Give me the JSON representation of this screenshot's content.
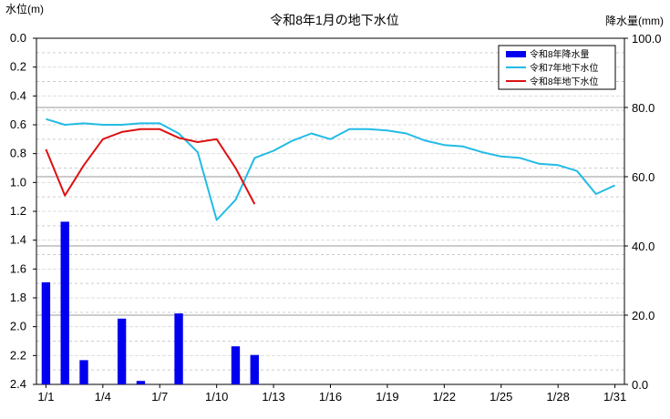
{
  "chart_data": {
    "type": "bar+line",
    "title": "令和8年1月の地下水位",
    "left_axis": {
      "label": "水位(m)",
      "ticks": [
        "0.0",
        "0.2",
        "0.4",
        "0.6",
        "0.8",
        "1.0",
        "1.2",
        "1.4",
        "1.6",
        "1.8",
        "2.0",
        "2.2",
        "2.4"
      ],
      "range": [
        0.0,
        2.4
      ],
      "inverted": true
    },
    "right_axis": {
      "label": "降水量(mm)",
      "ticks": [
        "0.0",
        "20.0",
        "40.0",
        "60.0",
        "80.0",
        "100.0"
      ],
      "range": [
        0,
        100
      ]
    },
    "x_ticks": [
      "1/1",
      "1/4",
      "1/7",
      "1/10",
      "1/13",
      "1/16",
      "1/19",
      "1/22",
      "1/25",
      "1/28",
      "1/31"
    ],
    "x_tick_days": [
      1,
      4,
      7,
      10,
      13,
      16,
      19,
      22,
      25,
      28,
      31
    ],
    "x_range": [
      1,
      31
    ],
    "grid": true,
    "legend_position": "top-right",
    "legend": [
      "令和8年降水量",
      "令和7年地下水位",
      "令和8年地下水位"
    ],
    "series": [
      {
        "name": "令和8年降水量",
        "kind": "bar",
        "axis": "right",
        "color": "#0000ee",
        "x": [
          1,
          2,
          3,
          5,
          6,
          8,
          11,
          12
        ],
        "values": [
          29.5,
          47.0,
          7.0,
          19.0,
          1.0,
          20.5,
          11.0,
          8.5
        ]
      },
      {
        "name": "令和7年地下水位",
        "kind": "line",
        "axis": "left",
        "color": "#22bbe6",
        "x": [
          1,
          2,
          3,
          4,
          5,
          6,
          7,
          8,
          9,
          10,
          11,
          12,
          13,
          14,
          15,
          16,
          17,
          18,
          19,
          20,
          21,
          22,
          23,
          24,
          25,
          26,
          27,
          28,
          29,
          30,
          31
        ],
        "values": [
          0.56,
          0.6,
          0.59,
          0.6,
          0.6,
          0.59,
          0.59,
          0.66,
          0.79,
          1.26,
          1.12,
          0.83,
          0.78,
          0.71,
          0.66,
          0.7,
          0.63,
          0.63,
          0.64,
          0.66,
          0.71,
          0.74,
          0.75,
          0.79,
          0.82,
          0.83,
          0.87,
          0.88,
          0.92,
          1.08,
          1.02
        ]
      },
      {
        "name": "令和8年地下水位",
        "kind": "line",
        "axis": "left",
        "color": "#dd1111",
        "x": [
          1,
          2,
          3,
          4,
          5,
          6,
          7,
          8,
          9,
          10,
          11,
          12
        ],
        "values": [
          0.77,
          1.09,
          0.88,
          0.7,
          0.65,
          0.63,
          0.63,
          0.69,
          0.72,
          0.7,
          0.9,
          1.15
        ]
      }
    ]
  },
  "colors": {
    "axis": "#000000",
    "grid_major": "#999999",
    "grid_minor": "#cccccc"
  }
}
